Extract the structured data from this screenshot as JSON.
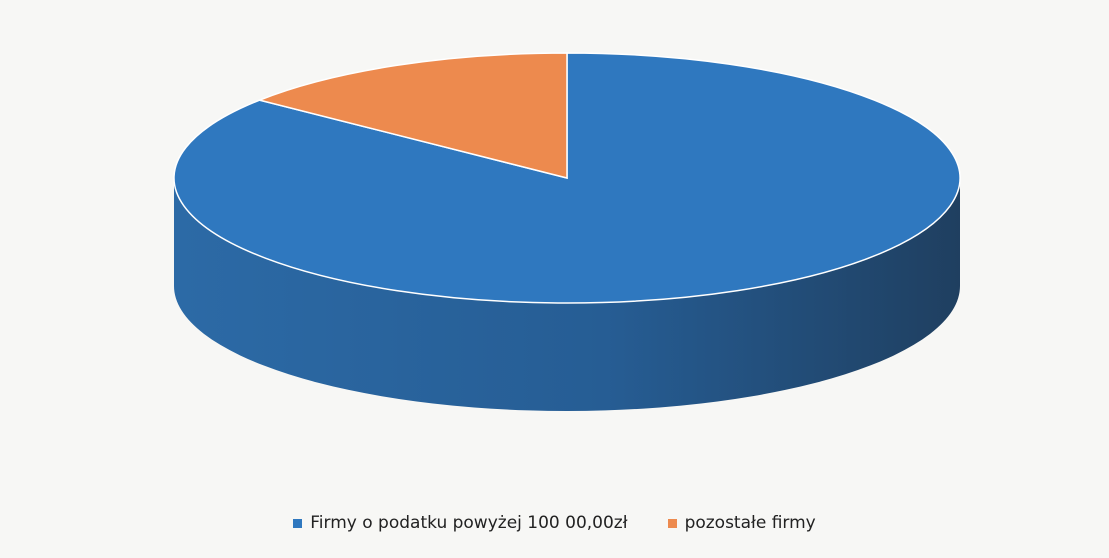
{
  "chart_data": {
    "type": "pie",
    "title": "",
    "series": [
      {
        "name": "Firmy o podatku powyżej 100 00,00zł",
        "value": 85.7,
        "color": "#2f78bf"
      },
      {
        "name": "pozostałe firmy",
        "value": 14.3,
        "color": "#ed8a4e"
      }
    ],
    "legend_position": "bottom"
  }
}
